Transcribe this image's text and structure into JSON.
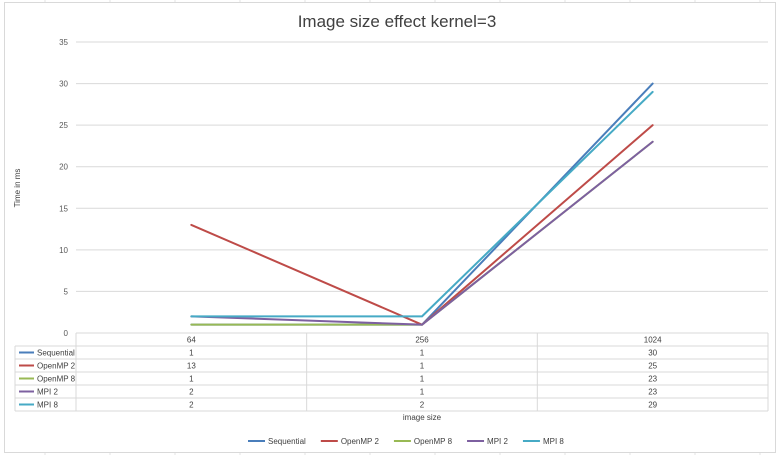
{
  "chart_data": {
    "type": "line",
    "title": "Image size effect kernel=3",
    "xlabel": "image size",
    "ylabel": "Time in ms",
    "ylim": [
      0,
      35
    ],
    "yticks": [
      "0",
      "5",
      "10",
      "15",
      "20",
      "25",
      "30",
      "35"
    ],
    "categories": [
      "64",
      "256",
      "1024"
    ],
    "grid": true,
    "legend_position": "bottom",
    "data_table": true,
    "series": [
      {
        "name": "Sequential",
        "values": [
          1,
          1,
          30
        ],
        "color": "#4a7ebb"
      },
      {
        "name": "OpenMP 2",
        "values": [
          13,
          1,
          25
        ],
        "color": "#be4b48"
      },
      {
        "name": "OpenMP 8",
        "values": [
          1,
          1,
          23
        ],
        "color": "#98b954"
      },
      {
        "name": "MPI 2",
        "values": [
          2,
          1,
          23
        ],
        "color": "#7d60a0"
      },
      {
        "name": "MPI 8",
        "values": [
          2,
          2,
          29
        ],
        "color": "#46aac5"
      }
    ]
  }
}
